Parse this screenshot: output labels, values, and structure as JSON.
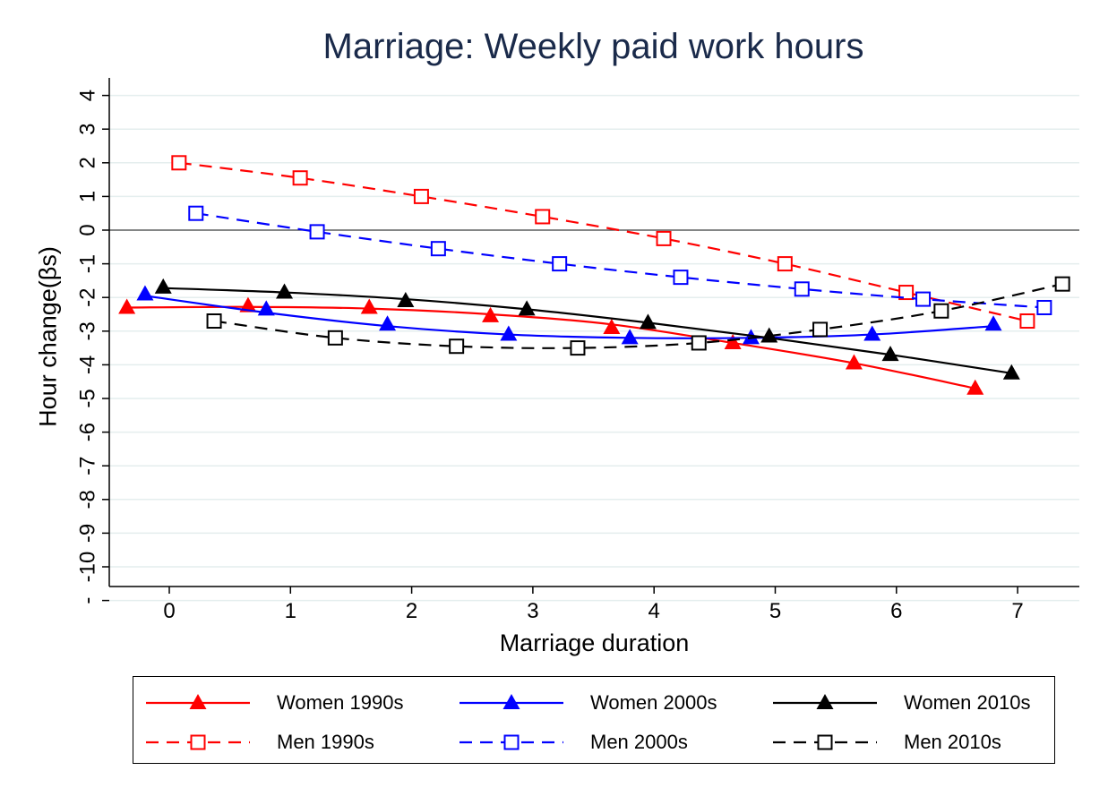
{
  "chart_data": {
    "type": "line",
    "title": "Marriage: Weekly paid work hours",
    "xlabel": "Marriage duration",
    "ylabel": "Hour change(βs)",
    "xlim": [
      -0.5,
      7.5
    ],
    "ylim": [
      -10.6,
      4.3
    ],
    "x_ticks": [
      "0",
      "1",
      "2",
      "3",
      "4",
      "5",
      "6",
      "7"
    ],
    "y_ticks": [
      "4",
      "3",
      "2",
      "1",
      "0",
      "-1",
      "-2",
      "-3",
      "-4",
      "-5",
      "-6",
      "-7",
      "-8",
      "-9",
      "-10",
      "-"
    ],
    "grid": true,
    "reference_line_y": 0,
    "legend_position": "bottom",
    "series": [
      {
        "name": "Women 1990s",
        "color": "#ff0000",
        "marker": "filled-triangle",
        "line": "solid",
        "x": [
          -0.35,
          0.65,
          1.65,
          2.65,
          3.65,
          4.65,
          5.65,
          6.65
        ],
        "y": [
          -2.3,
          -2.25,
          -2.3,
          -2.55,
          -2.9,
          -3.35,
          -3.95,
          -4.7
        ],
        "curve_y": [
          -2.3,
          -2.28,
          -2.33,
          -2.5,
          -2.8,
          -3.35,
          -3.95,
          -4.7
        ]
      },
      {
        "name": "Women 2000s",
        "color": "#0000ff",
        "marker": "filled-triangle",
        "line": "solid",
        "x": [
          -0.2,
          0.8,
          1.8,
          2.8,
          3.8,
          4.8,
          5.8,
          6.8
        ],
        "y": [
          -1.9,
          -2.35,
          -2.8,
          -3.1,
          -3.2,
          -3.2,
          -3.1,
          -2.8
        ],
        "curve_y": [
          -1.95,
          -2.45,
          -2.85,
          -3.1,
          -3.2,
          -3.2,
          -3.1,
          -2.85
        ]
      },
      {
        "name": "Women 2010s",
        "color": "#000000",
        "marker": "filled-triangle",
        "line": "solid",
        "x": [
          -0.05,
          0.95,
          1.95,
          2.95,
          3.95,
          4.95,
          5.95,
          6.95
        ],
        "y": [
          -1.7,
          -1.85,
          -2.1,
          -2.35,
          -2.75,
          -3.15,
          -3.7,
          -4.25
        ],
        "curve_y": [
          -1.72,
          -1.85,
          -2.05,
          -2.35,
          -2.75,
          -3.2,
          -3.7,
          -4.25
        ]
      },
      {
        "name": "Men 1990s",
        "color": "#ff0000",
        "marker": "hollow-square",
        "line": "dashed",
        "x": [
          0.08,
          1.08,
          2.08,
          3.08,
          4.08,
          5.08,
          6.08,
          7.08
        ],
        "y": [
          2.0,
          1.55,
          1.0,
          0.4,
          -0.25,
          -1.0,
          -1.85,
          -2.7
        ]
      },
      {
        "name": "Men 2000s",
        "color": "#0000ff",
        "marker": "hollow-square",
        "line": "dashed",
        "x": [
          0.22,
          1.22,
          2.22,
          3.22,
          4.22,
          5.22,
          6.22,
          7.22
        ],
        "y": [
          0.5,
          -0.05,
          -0.55,
          -1.0,
          -1.4,
          -1.75,
          -2.05,
          -2.3
        ]
      },
      {
        "name": "Men 2010s",
        "color": "#000000",
        "marker": "hollow-square",
        "line": "dashed",
        "x": [
          0.37,
          1.37,
          2.37,
          3.37,
          4.37,
          5.37,
          6.37,
          7.37
        ],
        "y": [
          -2.7,
          -3.2,
          -3.45,
          -3.5,
          -3.35,
          -2.95,
          -2.4,
          -1.6
        ]
      }
    ]
  }
}
